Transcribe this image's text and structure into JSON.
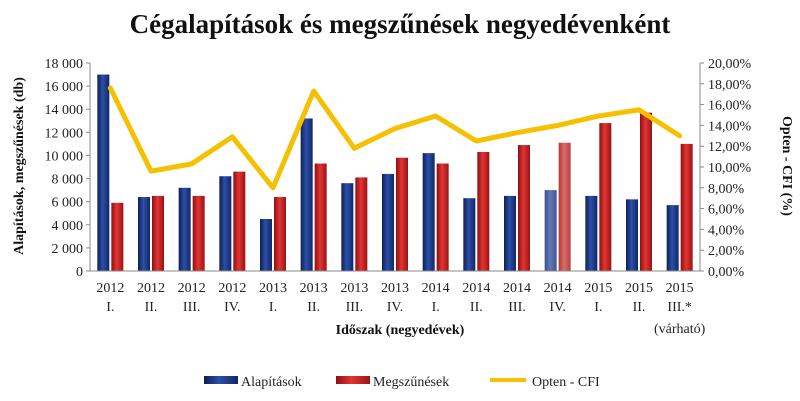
{
  "chart_data": {
    "type": "bar",
    "title": "Cégalapítások és megszűnések negyedévenként",
    "xlabel": "Időszak (negyedévek)",
    "ylabel": "Alapítások, megszűnések (db)",
    "y2label": "Opten - CFI (%)",
    "ylim": [
      0,
      18000
    ],
    "y2lim": [
      0,
      20
    ],
    "y_ticks": [
      "0",
      "2 000",
      "4 000",
      "6 000",
      "8 000",
      "10 000",
      "12 000",
      "14 000",
      "16 000",
      "18 000"
    ],
    "y2_ticks": [
      "0,00%",
      "2,00%",
      "4,00%",
      "6,00%",
      "8,00%",
      "10,00%",
      "12,00%",
      "14,00%",
      "16,00%",
      "18,00%",
      "20,00%"
    ],
    "categories": [
      {
        "year": "2012",
        "quarter": "I."
      },
      {
        "year": "2012",
        "quarter": "II."
      },
      {
        "year": "2012",
        "quarter": "III."
      },
      {
        "year": "2012",
        "quarter": "IV."
      },
      {
        "year": "2013",
        "quarter": "I."
      },
      {
        "year": "2013",
        "quarter": "II."
      },
      {
        "year": "2013",
        "quarter": "III."
      },
      {
        "year": "2013",
        "quarter": "IV."
      },
      {
        "year": "2014",
        "quarter": "I."
      },
      {
        "year": "2014",
        "quarter": "II."
      },
      {
        "year": "2014",
        "quarter": "III."
      },
      {
        "year": "2014",
        "quarter": "IV."
      },
      {
        "year": "2015",
        "quarter": "I."
      },
      {
        "year": "2015",
        "quarter": "II."
      },
      {
        "year": "2015",
        "quarter": "III.*"
      }
    ],
    "category_note": "(várható)",
    "series": [
      {
        "name": "Alapítások",
        "type": "bar",
        "color": "#1f3c88",
        "values": [
          17000,
          6400,
          7200,
          8200,
          4500,
          13200,
          7600,
          8400,
          10200,
          6300,
          6500,
          7000,
          6500,
          6200,
          5700
        ]
      },
      {
        "name": "Megszűnések",
        "type": "bar",
        "color": "#d42a2a",
        "values": [
          5900,
          6500,
          6500,
          8600,
          6400,
          9300,
          8100,
          9800,
          9300,
          10300,
          10900,
          11100,
          12800,
          13700,
          11000
        ]
      },
      {
        "name": "Opten - CFI",
        "type": "line",
        "axis": "right",
        "color": "#f5c000",
        "values": [
          17.6,
          9.6,
          10.3,
          12.9,
          8.0,
          17.3,
          11.8,
          13.7,
          14.9,
          12.5,
          13.3,
          14.0,
          14.9,
          15.5,
          13.0
        ]
      }
    ],
    "highlighted_category_index": 11,
    "legend_position": "bottom",
    "grid": false
  }
}
